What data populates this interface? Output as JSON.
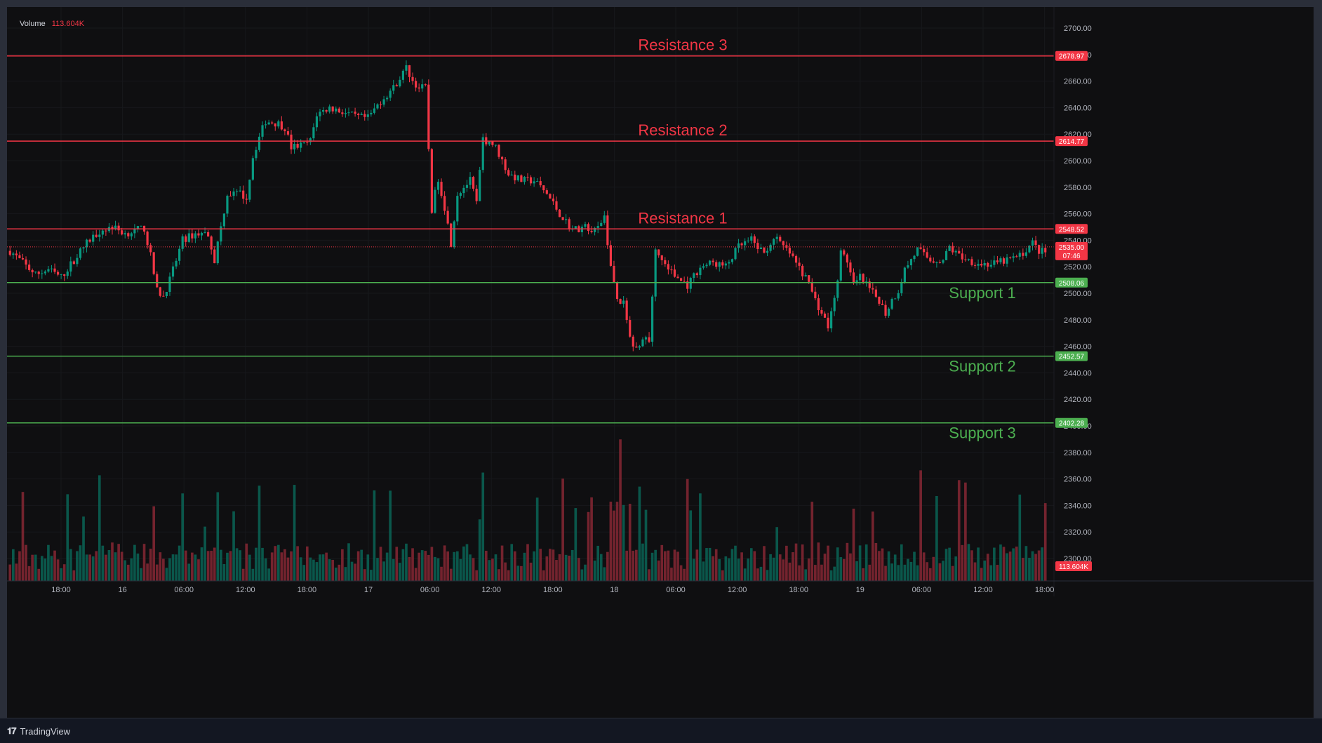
{
  "volume_legend": {
    "label": "Volume",
    "value": "113.604K"
  },
  "brand": {
    "name": "TradingView"
  },
  "colors": {
    "resistance": "#f23645",
    "support": "#4caf50",
    "up": "#089981",
    "down": "#f23645",
    "background": "#0f0f11"
  },
  "chart_data": {
    "type": "candlestick",
    "y_axis": {
      "ticks": [
        2300,
        2320,
        2340,
        2360,
        2380,
        2400,
        2420,
        2440,
        2460,
        2480,
        2500,
        2520,
        2540,
        2560,
        2580,
        2600,
        2620,
        2640,
        2660,
        2680,
        2700
      ],
      "tick_labels": [
        "2300.00",
        "2320.00",
        "2340.00",
        "2360.00",
        "2380.00",
        "2400.00",
        "2420.00",
        "2440.00",
        "2460.00",
        "2480.00",
        "2500.00",
        "2520.00",
        "2540.00",
        "2560.00",
        "2580.00",
        "2600.00",
        "2620.00",
        "2640.00",
        "2660.00",
        "2680.00",
        "2700.00"
      ],
      "range": [
        2284,
        2710
      ]
    },
    "x_axis": {
      "tick_labels": [
        "18:00",
        "16",
        "06:00",
        "12:00",
        "18:00",
        "17",
        "06:00",
        "12:00",
        "18:00",
        "18",
        "06:00",
        "12:00",
        "18:00",
        "19",
        "06:00",
        "12:00",
        "18:00"
      ]
    },
    "levels": [
      {
        "label": "Resistance 3",
        "value": 2678.97,
        "value_label": "2678.97",
        "kind": "resistance"
      },
      {
        "label": "Resistance 2",
        "value": 2614.77,
        "value_label": "2614.77",
        "kind": "resistance"
      },
      {
        "label": "Resistance 1",
        "value": 2548.52,
        "value_label": "2548.52",
        "kind": "resistance"
      },
      {
        "label": "Support 1",
        "value": 2508.06,
        "value_label": "2508.06",
        "kind": "support"
      },
      {
        "label": "Support 2",
        "value": 2452.57,
        "value_label": "2452.57",
        "kind": "support"
      },
      {
        "label": "Support 3",
        "value": 2402.28,
        "value_label": "2402.28",
        "kind": "support"
      }
    ],
    "last_price": {
      "value": 2535.0,
      "label": "2535.00",
      "countdown": "07:46"
    },
    "volume_last_label": "113.604K",
    "close_path": [
      [
        0,
        2532
      ],
      [
        4,
        2523
      ],
      [
        8,
        2514
      ],
      [
        12,
        2518
      ],
      [
        16,
        2512
      ],
      [
        20,
        2525
      ],
      [
        24,
        2538
      ],
      [
        28,
        2547
      ],
      [
        32,
        2550
      ],
      [
        36,
        2545
      ],
      [
        40,
        2548
      ],
      [
        42,
        2549
      ],
      [
        44,
        2528
      ],
      [
        46,
        2502
      ],
      [
        48,
        2498
      ],
      [
        50,
        2510
      ],
      [
        54,
        2540
      ],
      [
        58,
        2545
      ],
      [
        62,
        2545
      ],
      [
        64,
        2525
      ],
      [
        66,
        2550
      ],
      [
        68,
        2575
      ],
      [
        72,
        2575
      ],
      [
        74,
        2572
      ],
      [
        76,
        2603
      ],
      [
        78,
        2618
      ],
      [
        80,
        2630
      ],
      [
        84,
        2628
      ],
      [
        86,
        2625
      ],
      [
        88,
        2610
      ],
      [
        92,
        2612
      ],
      [
        94,
        2615
      ],
      [
        96,
        2635
      ],
      [
        100,
        2640
      ],
      [
        104,
        2637
      ],
      [
        108,
        2633
      ],
      [
        112,
        2632
      ],
      [
        116,
        2645
      ],
      [
        120,
        2655
      ],
      [
        124,
        2670
      ],
      [
        126,
        2660
      ],
      [
        128,
        2655
      ],
      [
        130,
        2655
      ],
      [
        132,
        2563
      ],
      [
        134,
        2587
      ],
      [
        136,
        2565
      ],
      [
        138,
        2538
      ],
      [
        140,
        2575
      ],
      [
        144,
        2585
      ],
      [
        146,
        2568
      ],
      [
        148,
        2615
      ],
      [
        150,
        2615
      ],
      [
        152,
        2610
      ],
      [
        156,
        2590
      ],
      [
        160,
        2585
      ],
      [
        164,
        2585
      ],
      [
        168,
        2575
      ],
      [
        172,
        2560
      ],
      [
        176,
        2548
      ],
      [
        180,
        2550
      ],
      [
        184,
        2548
      ],
      [
        186,
        2558
      ],
      [
        188,
        2520
      ],
      [
        190,
        2495
      ],
      [
        192,
        2492
      ],
      [
        194,
        2465
      ],
      [
        196,
        2458
      ],
      [
        198,
        2468
      ],
      [
        200,
        2464
      ],
      [
        202,
        2532
      ],
      [
        204,
        2525
      ],
      [
        208,
        2513
      ],
      [
        212,
        2506
      ],
      [
        216,
        2520
      ],
      [
        220,
        2523
      ],
      [
        224,
        2520
      ],
      [
        228,
        2535
      ],
      [
        232,
        2540
      ],
      [
        236,
        2530
      ],
      [
        238,
        2538
      ],
      [
        240,
        2540
      ],
      [
        244,
        2530
      ],
      [
        248,
        2515
      ],
      [
        250,
        2508
      ],
      [
        252,
        2495
      ],
      [
        254,
        2485
      ],
      [
        256,
        2475
      ],
      [
        258,
        2495
      ],
      [
        260,
        2530
      ],
      [
        262,
        2525
      ],
      [
        264,
        2505
      ],
      [
        266,
        2512
      ],
      [
        270,
        2500
      ],
      [
        272,
        2495
      ],
      [
        274,
        2485
      ],
      [
        276,
        2495
      ],
      [
        278,
        2502
      ],
      [
        280,
        2518
      ],
      [
        284,
        2533
      ],
      [
        288,
        2525
      ],
      [
        292,
        2525
      ],
      [
        294,
        2535
      ],
      [
        296,
        2530
      ],
      [
        300,
        2525
      ],
      [
        304,
        2522
      ],
      [
        308,
        2522
      ],
      [
        312,
        2525
      ],
      [
        316,
        2528
      ],
      [
        320,
        2538
      ],
      [
        322,
        2532
      ],
      [
        324,
        2531
      ]
    ]
  }
}
